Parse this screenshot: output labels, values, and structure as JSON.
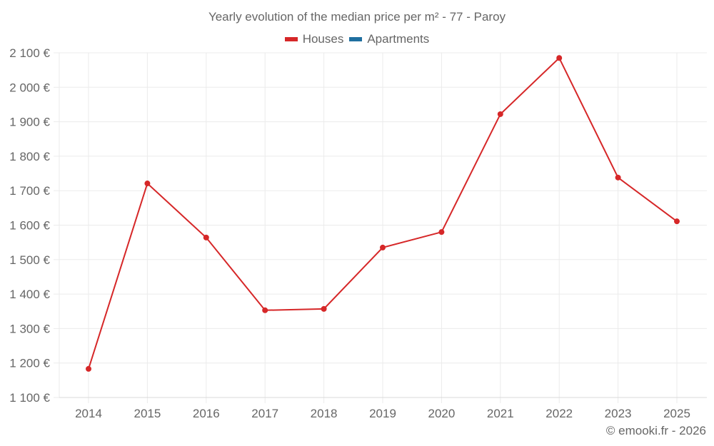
{
  "title": "Yearly evolution of the median price per m² - 77 - Paroy",
  "legend": [
    {
      "label": "Houses",
      "color": "#d62728"
    },
    {
      "label": "Apartments",
      "color": "#1f6fa0"
    }
  ],
  "footer": "© emooki.fr - 2026",
  "chart_data": {
    "type": "line",
    "title": "Yearly evolution of the median price per m² - 77 - Paroy",
    "xlabel": "",
    "ylabel": "",
    "categories": [
      "2014",
      "2015",
      "2016",
      "2017",
      "2018",
      "2019",
      "2020",
      "2021",
      "2022",
      "2023",
      "2025"
    ],
    "series": [
      {
        "name": "Houses",
        "color": "#d62728",
        "values": [
          1183,
          1721,
          1564,
          1353,
          1357,
          1535,
          1580,
          1922,
          2085,
          1738,
          1611
        ]
      },
      {
        "name": "Apartments",
        "color": "#1f6fa0",
        "values": []
      }
    ],
    "ylim": [
      1100,
      2100
    ],
    "yticks": [
      1100,
      1200,
      1300,
      1400,
      1500,
      1600,
      1700,
      1800,
      1900,
      2000,
      2100
    ],
    "ytick_labels": [
      "1 100 €",
      "1 200 €",
      "1 300 €",
      "1 400 €",
      "1 500 €",
      "1 600 €",
      "1 700 €",
      "1 800 €",
      "1 900 €",
      "2 000 €",
      "2 100 €"
    ],
    "grid": true,
    "legend_position": "top"
  }
}
